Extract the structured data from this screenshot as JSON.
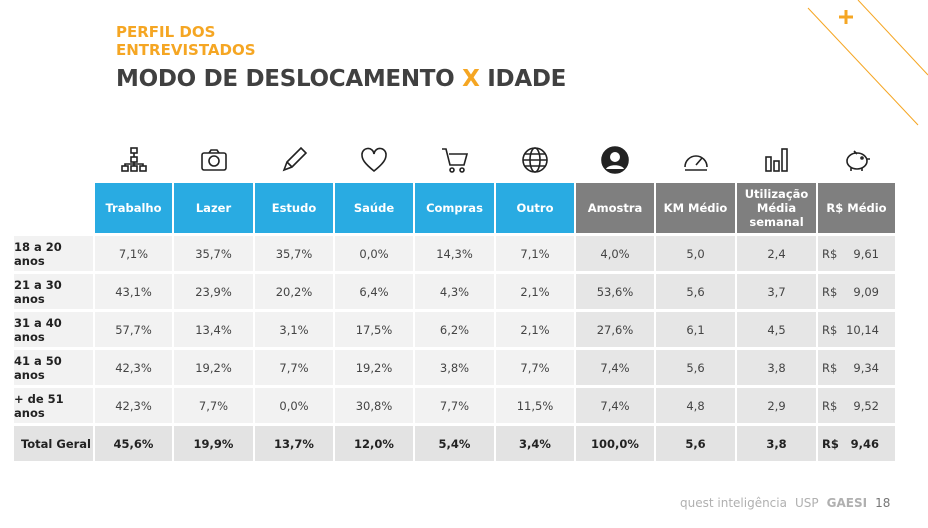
{
  "header": {
    "subtitle_line1": "PERFIL DOS",
    "subtitle_line2": "ENTREVISTADOS",
    "title_a": "MODO DE DESLOCAMENTO ",
    "title_x": "X",
    "title_b": " IDADE"
  },
  "columns": [
    {
      "label": "Trabalho",
      "icon": "org-chart-icon",
      "color": "blue"
    },
    {
      "label": "Lazer",
      "icon": "camera-icon",
      "color": "blue"
    },
    {
      "label": "Estudo",
      "icon": "pencil-icon",
      "color": "blue"
    },
    {
      "label": "Saúde",
      "icon": "heart-icon",
      "color": "blue"
    },
    {
      "label": "Compras",
      "icon": "cart-icon",
      "color": "blue"
    },
    {
      "label": "Outro",
      "icon": "globe-icon",
      "color": "blue"
    },
    {
      "label": "Amostra",
      "icon": "user-icon",
      "color": "gray"
    },
    {
      "label": "KM Médio",
      "icon": "speedometer-icon",
      "color": "gray"
    },
    {
      "label": "Utilização Média semanal",
      "icon": "bar-chart-icon",
      "color": "gray"
    },
    {
      "label": "R$ Médio",
      "icon": "piggy-bank-icon",
      "color": "gray"
    }
  ],
  "rows": [
    {
      "label": "18 a 20 anos",
      "values": [
        "7,1%",
        "35,7%",
        "35,7%",
        "0,0%",
        "14,3%",
        "7,1%",
        "4,0%",
        "5,0",
        "2,4"
      ],
      "currency": "R$",
      "money": "9,61"
    },
    {
      "label": "21 a 30 anos",
      "values": [
        "43,1%",
        "23,9%",
        "20,2%",
        "6,4%",
        "4,3%",
        "2,1%",
        "53,6%",
        "5,6",
        "3,7"
      ],
      "currency": "R$",
      "money": "9,09"
    },
    {
      "label": "31 a 40 anos",
      "values": [
        "57,7%",
        "13,4%",
        "3,1%",
        "17,5%",
        "6,2%",
        "2,1%",
        "27,6%",
        "6,1",
        "4,5"
      ],
      "currency": "R$",
      "money": "10,14"
    },
    {
      "label": "41 a 50 anos",
      "values": [
        "42,3%",
        "19,2%",
        "7,7%",
        "19,2%",
        "3,8%",
        "7,7%",
        "7,4%",
        "5,6",
        "3,8"
      ],
      "currency": "R$",
      "money": "9,34"
    },
    {
      "label": "+ de 51 anos",
      "values": [
        "42,3%",
        "7,7%",
        "0,0%",
        "30,8%",
        "7,7%",
        "11,5%",
        "7,4%",
        "4,8",
        "2,9"
      ],
      "currency": "R$",
      "money": "9,52"
    },
    {
      "label": "Total Geral",
      "values": [
        "45,6%",
        "19,9%",
        "13,7%",
        "12,0%",
        "5,4%",
        "3,4%",
        "100,0%",
        "5,6",
        "3,8"
      ],
      "currency": "R$",
      "money": "9,46",
      "total": true
    }
  ],
  "footer": {
    "brand1": "quest inteligência",
    "brand2": "USP",
    "brand3": "GAESI",
    "page": "18"
  },
  "colors": {
    "accent": "#f5a623",
    "blue": "#29abe2",
    "gray": "#7f7f7f"
  }
}
